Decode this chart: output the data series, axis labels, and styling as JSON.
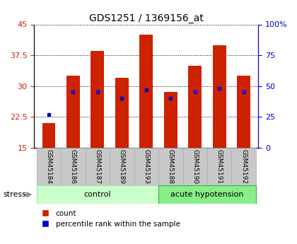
{
  "title": "GDS1251 / 1369156_at",
  "samples": [
    "GSM45184",
    "GSM45186",
    "GSM45187",
    "GSM45189",
    "GSM45193",
    "GSM45188",
    "GSM45190",
    "GSM45191",
    "GSM45192"
  ],
  "count_values": [
    21.0,
    32.5,
    38.5,
    32.0,
    42.5,
    28.5,
    35.0,
    40.0,
    32.5
  ],
  "percentile_values": [
    23.0,
    28.5,
    28.5,
    27.0,
    29.0,
    27.0,
    28.5,
    29.5,
    28.5
  ],
  "bar_bottom": 15.0,
  "ylim_left": [
    15,
    45
  ],
  "ylim_right": [
    0,
    100
  ],
  "yticks_left": [
    15,
    22.5,
    30,
    37.5,
    45
  ],
  "yticks_right": [
    0,
    25,
    50,
    75,
    100
  ],
  "ytick_labels_left": [
    "15",
    "22.5",
    "30",
    "37.5",
    "45"
  ],
  "ytick_labels_right": [
    "0",
    "25",
    "50",
    "75",
    "100%"
  ],
  "bar_color": "#cc2200",
  "percentile_color": "#0000cc",
  "bar_width": 0.55,
  "ctrl_color_light": "#ccffcc",
  "ctrl_color_border": "#aaddaa",
  "ah_color_light": "#88ee88",
  "ah_color_border": "#44aa44",
  "sample_box_color": "#c8c8c8",
  "stress_label": "stress",
  "left_axis_color": "#cc2200",
  "right_axis_color": "#0000cc",
  "legend_count": "count",
  "legend_percentile": "percentile rank within the sample"
}
